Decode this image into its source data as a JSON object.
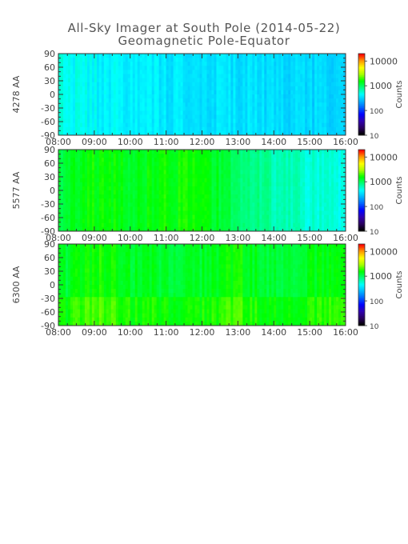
{
  "title": "All-Sky Imager at South Pole (2014-05-22)",
  "subtitle": "Geomagnetic Pole-Equator",
  "colorbar_label": "Counts",
  "chart_data": [
    {
      "type": "heatmap",
      "ylabel": "4278 AA",
      "x": [
        "08:00",
        "09:00",
        "10:00",
        "11:00",
        "12:00",
        "13:00",
        "14:00",
        "15:00",
        "16:00"
      ],
      "xlim": [
        "08:00",
        "16:00"
      ],
      "y_ticks": [
        90,
        60,
        30,
        0,
        -30,
        -60,
        -90
      ],
      "ylim": [
        -90,
        90
      ],
      "colorbar": {
        "scale": "log",
        "ticks": [
          10,
          100,
          1000,
          10000
        ],
        "label": "Counts"
      },
      "approx_counts_by_hour": [
        500,
        430,
        400,
        380,
        370,
        360,
        340,
        320,
        310
      ]
    },
    {
      "type": "heatmap",
      "ylabel": "5577 AA",
      "x": [
        "08:00",
        "09:00",
        "10:00",
        "11:00",
        "12:00",
        "13:00",
        "14:00",
        "15:00",
        "16:00"
      ],
      "xlim": [
        "08:00",
        "16:00"
      ],
      "y_ticks": [
        90,
        60,
        30,
        0,
        -30,
        -60,
        -90
      ],
      "ylim": [
        -90,
        90
      ],
      "colorbar": {
        "scale": "log",
        "ticks": [
          10,
          100,
          1000,
          10000
        ],
        "label": "Counts"
      },
      "approx_counts_by_hour": [
        1100,
        1600,
        1400,
        1700,
        1500,
        1000,
        700,
        550,
        500
      ]
    },
    {
      "type": "heatmap",
      "ylabel": "6300 AA",
      "x": [
        "08:00",
        "09:00",
        "10:00",
        "11:00",
        "12:00",
        "13:00",
        "14:00",
        "15:00",
        "16:00"
      ],
      "xlim": [
        "08:00",
        "16:00"
      ],
      "y_ticks": [
        90,
        60,
        30,
        0,
        -30,
        -60,
        -90
      ],
      "ylim": [
        -90,
        90
      ],
      "colorbar": {
        "scale": "log",
        "ticks": [
          10,
          100,
          1000,
          10000
        ],
        "label": "Counts"
      },
      "approx_counts_by_hour": [
        1200,
        1700,
        1400,
        1300,
        1300,
        1600,
        1200,
        1400,
        1500
      ]
    }
  ],
  "colors": {
    "axis": "#333333",
    "tick_text": "#444444",
    "colormap": [
      "#000000",
      "#2a0060",
      "#3000b0",
      "#0000ff",
      "#0060ff",
      "#00b4ff",
      "#00ffff",
      "#00ff80",
      "#00ff00",
      "#aaff00",
      "#ffff00",
      "#ff9900",
      "#ff0000"
    ]
  }
}
